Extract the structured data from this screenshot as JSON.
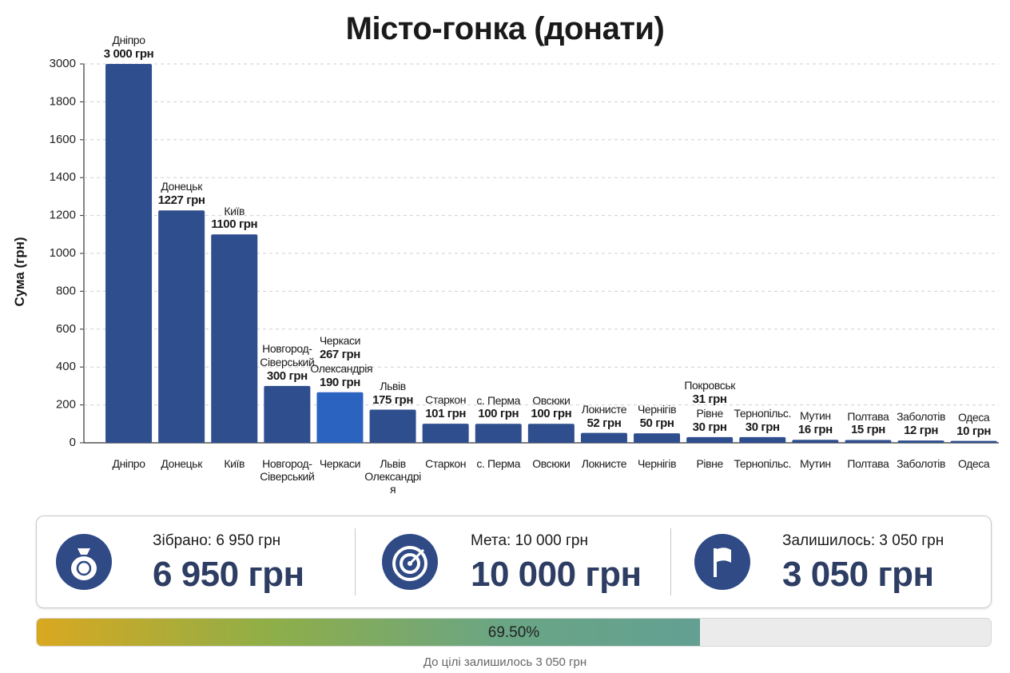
{
  "chart_data": {
    "type": "bar",
    "title": "Місто-гонка (донати)",
    "y_label": "Сума (грн)",
    "categories": [
      "Дніпро",
      "Донецьк",
      "Київ",
      "Новгород-Сіверський",
      "Черкаси",
      "Львів Олександрія",
      "Старкон",
      "с. Перма",
      "Овсюки",
      "Локнисте",
      "Чернігів",
      "Рівне",
      "Тернопільс.",
      "Мутин",
      "Полтава",
      "Заболотів",
      "Одеса"
    ],
    "values": [
      3000,
      1227,
      1100,
      300,
      267,
      175,
      101,
      100,
      100,
      52,
      50,
      30,
      30,
      16,
      15,
      12,
      10
    ],
    "value_labels": [
      "3 000 грн",
      "1227 грн",
      "1100 грн",
      "300 грн",
      "267 грн",
      "175 грн",
      "101 грн",
      "100 грн",
      "100 грн",
      "52 грн",
      "50 грн",
      "30 грн",
      "30 грн",
      "16 грн",
      "15 грн",
      "12 грн",
      "10 грн"
    ],
    "label_names": [
      "Дніпро",
      "Донецьк",
      "Київ",
      "Новгород-Сіверський",
      "Черкаси",
      "Львів",
      "Старкон",
      "с. Перма",
      "Овсюки",
      "Локнисте",
      "Чернігів",
      "Рівне",
      "Тернопільс.",
      "Мутин",
      "Полтава",
      "Заболотів",
      "Одеса"
    ],
    "colors": [
      "#2f4e8e",
      "#2f4e8e",
      "#2f4e8e",
      "#2f4e8e",
      "#2b63c0",
      "#2f4e8e",
      "#2f4e8e",
      "#2f4e8e",
      "#2f4e8e",
      "#2f4e8e",
      "#2f4e8e",
      "#2f4e8e",
      "#2f4e8e",
      "#2f4e8e",
      "#2f4e8e",
      "#2f4e8e",
      "#2f4e8e"
    ],
    "extra_labels": [
      {
        "name": "Олександрія",
        "value": 190,
        "label": "190 грн"
      },
      {
        "name": "Покровськ",
        "value": 31,
        "label": "31 грн"
      }
    ],
    "ylim": [
      0,
      3000
    ],
    "yticks": [
      0,
      200,
      400,
      600,
      800,
      1000,
      1200,
      1400,
      1600,
      1800,
      3000
    ],
    "grid": true
  },
  "summary": {
    "collected": {
      "caption": "Зібрано: 6 950 грн",
      "big": "6 950 грн"
    },
    "goal": {
      "caption": "Мета: 10 000 грн",
      "big": "10 000 грн"
    },
    "remaining": {
      "caption": "Залишилось: 3 050 грн",
      "big": "3 050 грн"
    }
  },
  "progress": {
    "value": 69.5,
    "label": "69.50%",
    "caption": "До цілі залишилось 3 050 грн"
  }
}
